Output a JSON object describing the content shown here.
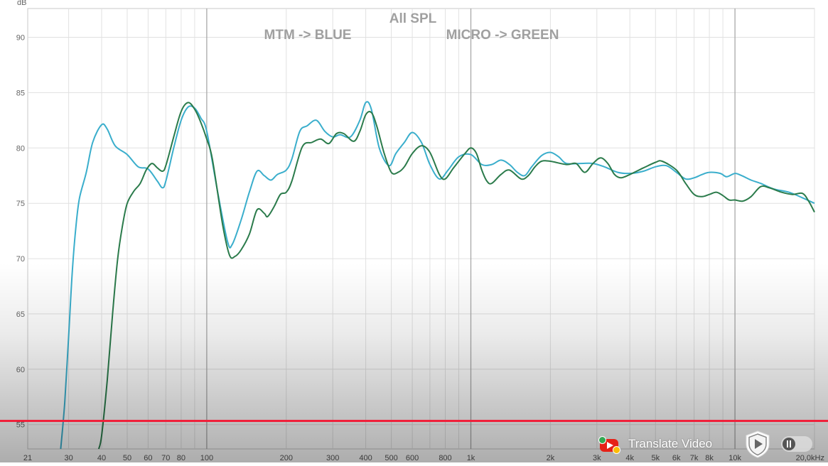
{
  "chart_data": {
    "type": "line",
    "title": "All SPL",
    "annotations": [
      "MTM -> BLUE",
      "MICRO -> GREEN"
    ],
    "ylabel": "dB",
    "xlabel": "",
    "x_scale": "log",
    "xlim": [
      21,
      20000
    ],
    "ylim": [
      52.8,
      92.6
    ],
    "grid": true,
    "x_ticks": [
      {
        "v": 21,
        "label": "21"
      },
      {
        "v": 30,
        "label": "30"
      },
      {
        "v": 40,
        "label": "40"
      },
      {
        "v": 50,
        "label": "50"
      },
      {
        "v": 60,
        "label": "60"
      },
      {
        "v": 70,
        "label": "70"
      },
      {
        "v": 80,
        "label": "80"
      },
      {
        "v": 100,
        "label": "100"
      },
      {
        "v": 200,
        "label": "200"
      },
      {
        "v": 300,
        "label": "300"
      },
      {
        "v": 400,
        "label": "400"
      },
      {
        "v": 500,
        "label": "500"
      },
      {
        "v": 600,
        "label": "600"
      },
      {
        "v": 800,
        "label": "800"
      },
      {
        "v": 1000,
        "label": "1k"
      },
      {
        "v": 2000,
        "label": "2k"
      },
      {
        "v": 3000,
        "label": "3k"
      },
      {
        "v": 4000,
        "label": "4k"
      },
      {
        "v": 5000,
        "label": "5k"
      },
      {
        "v": 6000,
        "label": "6k"
      },
      {
        "v": 7000,
        "label": "7k"
      },
      {
        "v": 8000,
        "label": "8k"
      },
      {
        "v": 10000,
        "label": "10k"
      },
      {
        "v": 20000,
        "label": "20,0kHz"
      }
    ],
    "y_ticks": [
      {
        "v": 55,
        "label": "55"
      },
      {
        "v": 60,
        "label": "60"
      },
      {
        "v": 65,
        "label": "65"
      },
      {
        "v": 70,
        "label": "70"
      },
      {
        "v": 75,
        "label": "75"
      },
      {
        "v": 80,
        "label": "80"
      },
      {
        "v": 85,
        "label": "85"
      },
      {
        "v": 90,
        "label": "90"
      }
    ],
    "series": [
      {
        "color": "#3aaecc",
        "points": [
          [
            28,
            52.8
          ],
          [
            29,
            57
          ],
          [
            30,
            63
          ],
          [
            31,
            69
          ],
          [
            32,
            73
          ],
          [
            33,
            75.5
          ],
          [
            35,
            77.8
          ],
          [
            37,
            80.5
          ],
          [
            40,
            82.1
          ],
          [
            42,
            81.7
          ],
          [
            45,
            80.2
          ],
          [
            50,
            79.4
          ],
          [
            55,
            78.3
          ],
          [
            60,
            78.1
          ],
          [
            65,
            77
          ],
          [
            68,
            76.4
          ],
          [
            70,
            77
          ],
          [
            75,
            80
          ],
          [
            80,
            82.5
          ],
          [
            85,
            83.7
          ],
          [
            90,
            83.6
          ],
          [
            95,
            82.7
          ],
          [
            100,
            81.5
          ],
          [
            110,
            76
          ],
          [
            120,
            71.5
          ],
          [
            125,
            71.3
          ],
          [
            135,
            73.5
          ],
          [
            145,
            76
          ],
          [
            155,
            77.9
          ],
          [
            165,
            77.5
          ],
          [
            175,
            77.1
          ],
          [
            185,
            77.6
          ],
          [
            200,
            78
          ],
          [
            210,
            79
          ],
          [
            225,
            81.5
          ],
          [
            240,
            82
          ],
          [
            260,
            82.5
          ],
          [
            280,
            81.5
          ],
          [
            300,
            81
          ],
          [
            320,
            81.2
          ],
          [
            350,
            81
          ],
          [
            380,
            82.5
          ],
          [
            400,
            84.1
          ],
          [
            420,
            83.5
          ],
          [
            450,
            80
          ],
          [
            490,
            78.4
          ],
          [
            520,
            79.5
          ],
          [
            560,
            80.5
          ],
          [
            600,
            81.4
          ],
          [
            650,
            80.5
          ],
          [
            700,
            78.5
          ],
          [
            760,
            77.2
          ],
          [
            820,
            78
          ],
          [
            900,
            79.2
          ],
          [
            1000,
            79.4
          ],
          [
            1100,
            78.5
          ],
          [
            1200,
            78.5
          ],
          [
            1300,
            78.9
          ],
          [
            1400,
            78.5
          ],
          [
            1500,
            77.8
          ],
          [
            1600,
            77.5
          ],
          [
            1700,
            78.3
          ],
          [
            1850,
            79.3
          ],
          [
            2000,
            79.6
          ],
          [
            2150,
            79.2
          ],
          [
            2300,
            78.6
          ],
          [
            2600,
            78.6
          ],
          [
            2900,
            78.6
          ],
          [
            3200,
            78.3
          ],
          [
            3600,
            77.8
          ],
          [
            4000,
            77.7
          ],
          [
            4500,
            77.9
          ],
          [
            5000,
            78.3
          ],
          [
            5500,
            78.4
          ],
          [
            6000,
            77.8
          ],
          [
            6500,
            77.2
          ],
          [
            7000,
            77.3
          ],
          [
            7500,
            77.6
          ],
          [
            8000,
            77.8
          ],
          [
            8800,
            77.7
          ],
          [
            9300,
            77.4
          ],
          [
            10000,
            77.7
          ],
          [
            10600,
            77.5
          ],
          [
            11500,
            77.1
          ],
          [
            12500,
            76.8
          ],
          [
            14000,
            76.3
          ],
          [
            16000,
            76
          ],
          [
            18000,
            75.5
          ],
          [
            20000,
            75
          ]
        ]
      },
      {
        "color": "#2b7b4b",
        "points": [
          [
            39,
            52.8
          ],
          [
            40,
            54
          ],
          [
            42,
            59
          ],
          [
            44,
            65
          ],
          [
            46,
            70
          ],
          [
            48,
            73
          ],
          [
            50,
            75
          ],
          [
            53,
            76.1
          ],
          [
            56,
            76.8
          ],
          [
            59,
            78
          ],
          [
            62,
            78.6
          ],
          [
            65,
            78.2
          ],
          [
            68,
            77.9
          ],
          [
            70,
            78.4
          ],
          [
            75,
            81
          ],
          [
            80,
            83.3
          ],
          [
            85,
            84.1
          ],
          [
            90,
            83.5
          ],
          [
            95,
            82.3
          ],
          [
            100,
            80.8
          ],
          [
            105,
            79
          ],
          [
            115,
            73
          ],
          [
            122,
            70.3
          ],
          [
            128,
            70.2
          ],
          [
            135,
            70.8
          ],
          [
            145,
            72.2
          ],
          [
            155,
            74.4
          ],
          [
            165,
            74.1
          ],
          [
            170,
            73.8
          ],
          [
            180,
            74.7
          ],
          [
            190,
            75.8
          ],
          [
            200,
            76
          ],
          [
            210,
            77
          ],
          [
            230,
            80.1
          ],
          [
            250,
            80.5
          ],
          [
            270,
            80.8
          ],
          [
            290,
            80.4
          ],
          [
            310,
            81.3
          ],
          [
            330,
            81.3
          ],
          [
            360,
            80.6
          ],
          [
            380,
            81.5
          ],
          [
            400,
            83
          ],
          [
            420,
            83.2
          ],
          [
            440,
            82
          ],
          [
            470,
            79.5
          ],
          [
            500,
            77.8
          ],
          [
            530,
            77.8
          ],
          [
            560,
            78.3
          ],
          [
            600,
            79.5
          ],
          [
            650,
            80.2
          ],
          [
            700,
            79.6
          ],
          [
            760,
            77.6
          ],
          [
            800,
            77.2
          ],
          [
            860,
            78.2
          ],
          [
            950,
            79.5
          ],
          [
            1000,
            80
          ],
          [
            1050,
            79.5
          ],
          [
            1100,
            78
          ],
          [
            1150,
            77
          ],
          [
            1200,
            76.8
          ],
          [
            1300,
            77.6
          ],
          [
            1400,
            78
          ],
          [
            1550,
            77.2
          ],
          [
            1650,
            77.5
          ],
          [
            1750,
            78.3
          ],
          [
            1850,
            78.8
          ],
          [
            2000,
            78.8
          ],
          [
            2300,
            78.5
          ],
          [
            2500,
            78.6
          ],
          [
            2700,
            77.8
          ],
          [
            2900,
            78.6
          ],
          [
            3100,
            79.1
          ],
          [
            3300,
            78.6
          ],
          [
            3500,
            77.6
          ],
          [
            3700,
            77.3
          ],
          [
            4000,
            77.6
          ],
          [
            4500,
            78.2
          ],
          [
            5000,
            78.7
          ],
          [
            5300,
            78.8
          ],
          [
            6000,
            78
          ],
          [
            6500,
            76.8
          ],
          [
            7000,
            75.8
          ],
          [
            7500,
            75.6
          ],
          [
            8000,
            75.8
          ],
          [
            8500,
            76
          ],
          [
            9000,
            75.7
          ],
          [
            9500,
            75.3
          ],
          [
            10000,
            75.3
          ],
          [
            10700,
            75.2
          ],
          [
            11500,
            75.6
          ],
          [
            12500,
            76.5
          ],
          [
            13500,
            76.4
          ],
          [
            15000,
            76
          ],
          [
            16500,
            75.8
          ],
          [
            18000,
            75.9
          ],
          [
            19000,
            75.2
          ],
          [
            20000,
            74.2
          ]
        ]
      }
    ]
  },
  "player": {
    "progress_fraction": 1.0,
    "translate_label": "Translate Video",
    "colors": {
      "progress": "#f0203a"
    },
    "icons": [
      "youtube-translate-icon",
      "play-shield-icon",
      "pause-toggle-icon"
    ]
  }
}
